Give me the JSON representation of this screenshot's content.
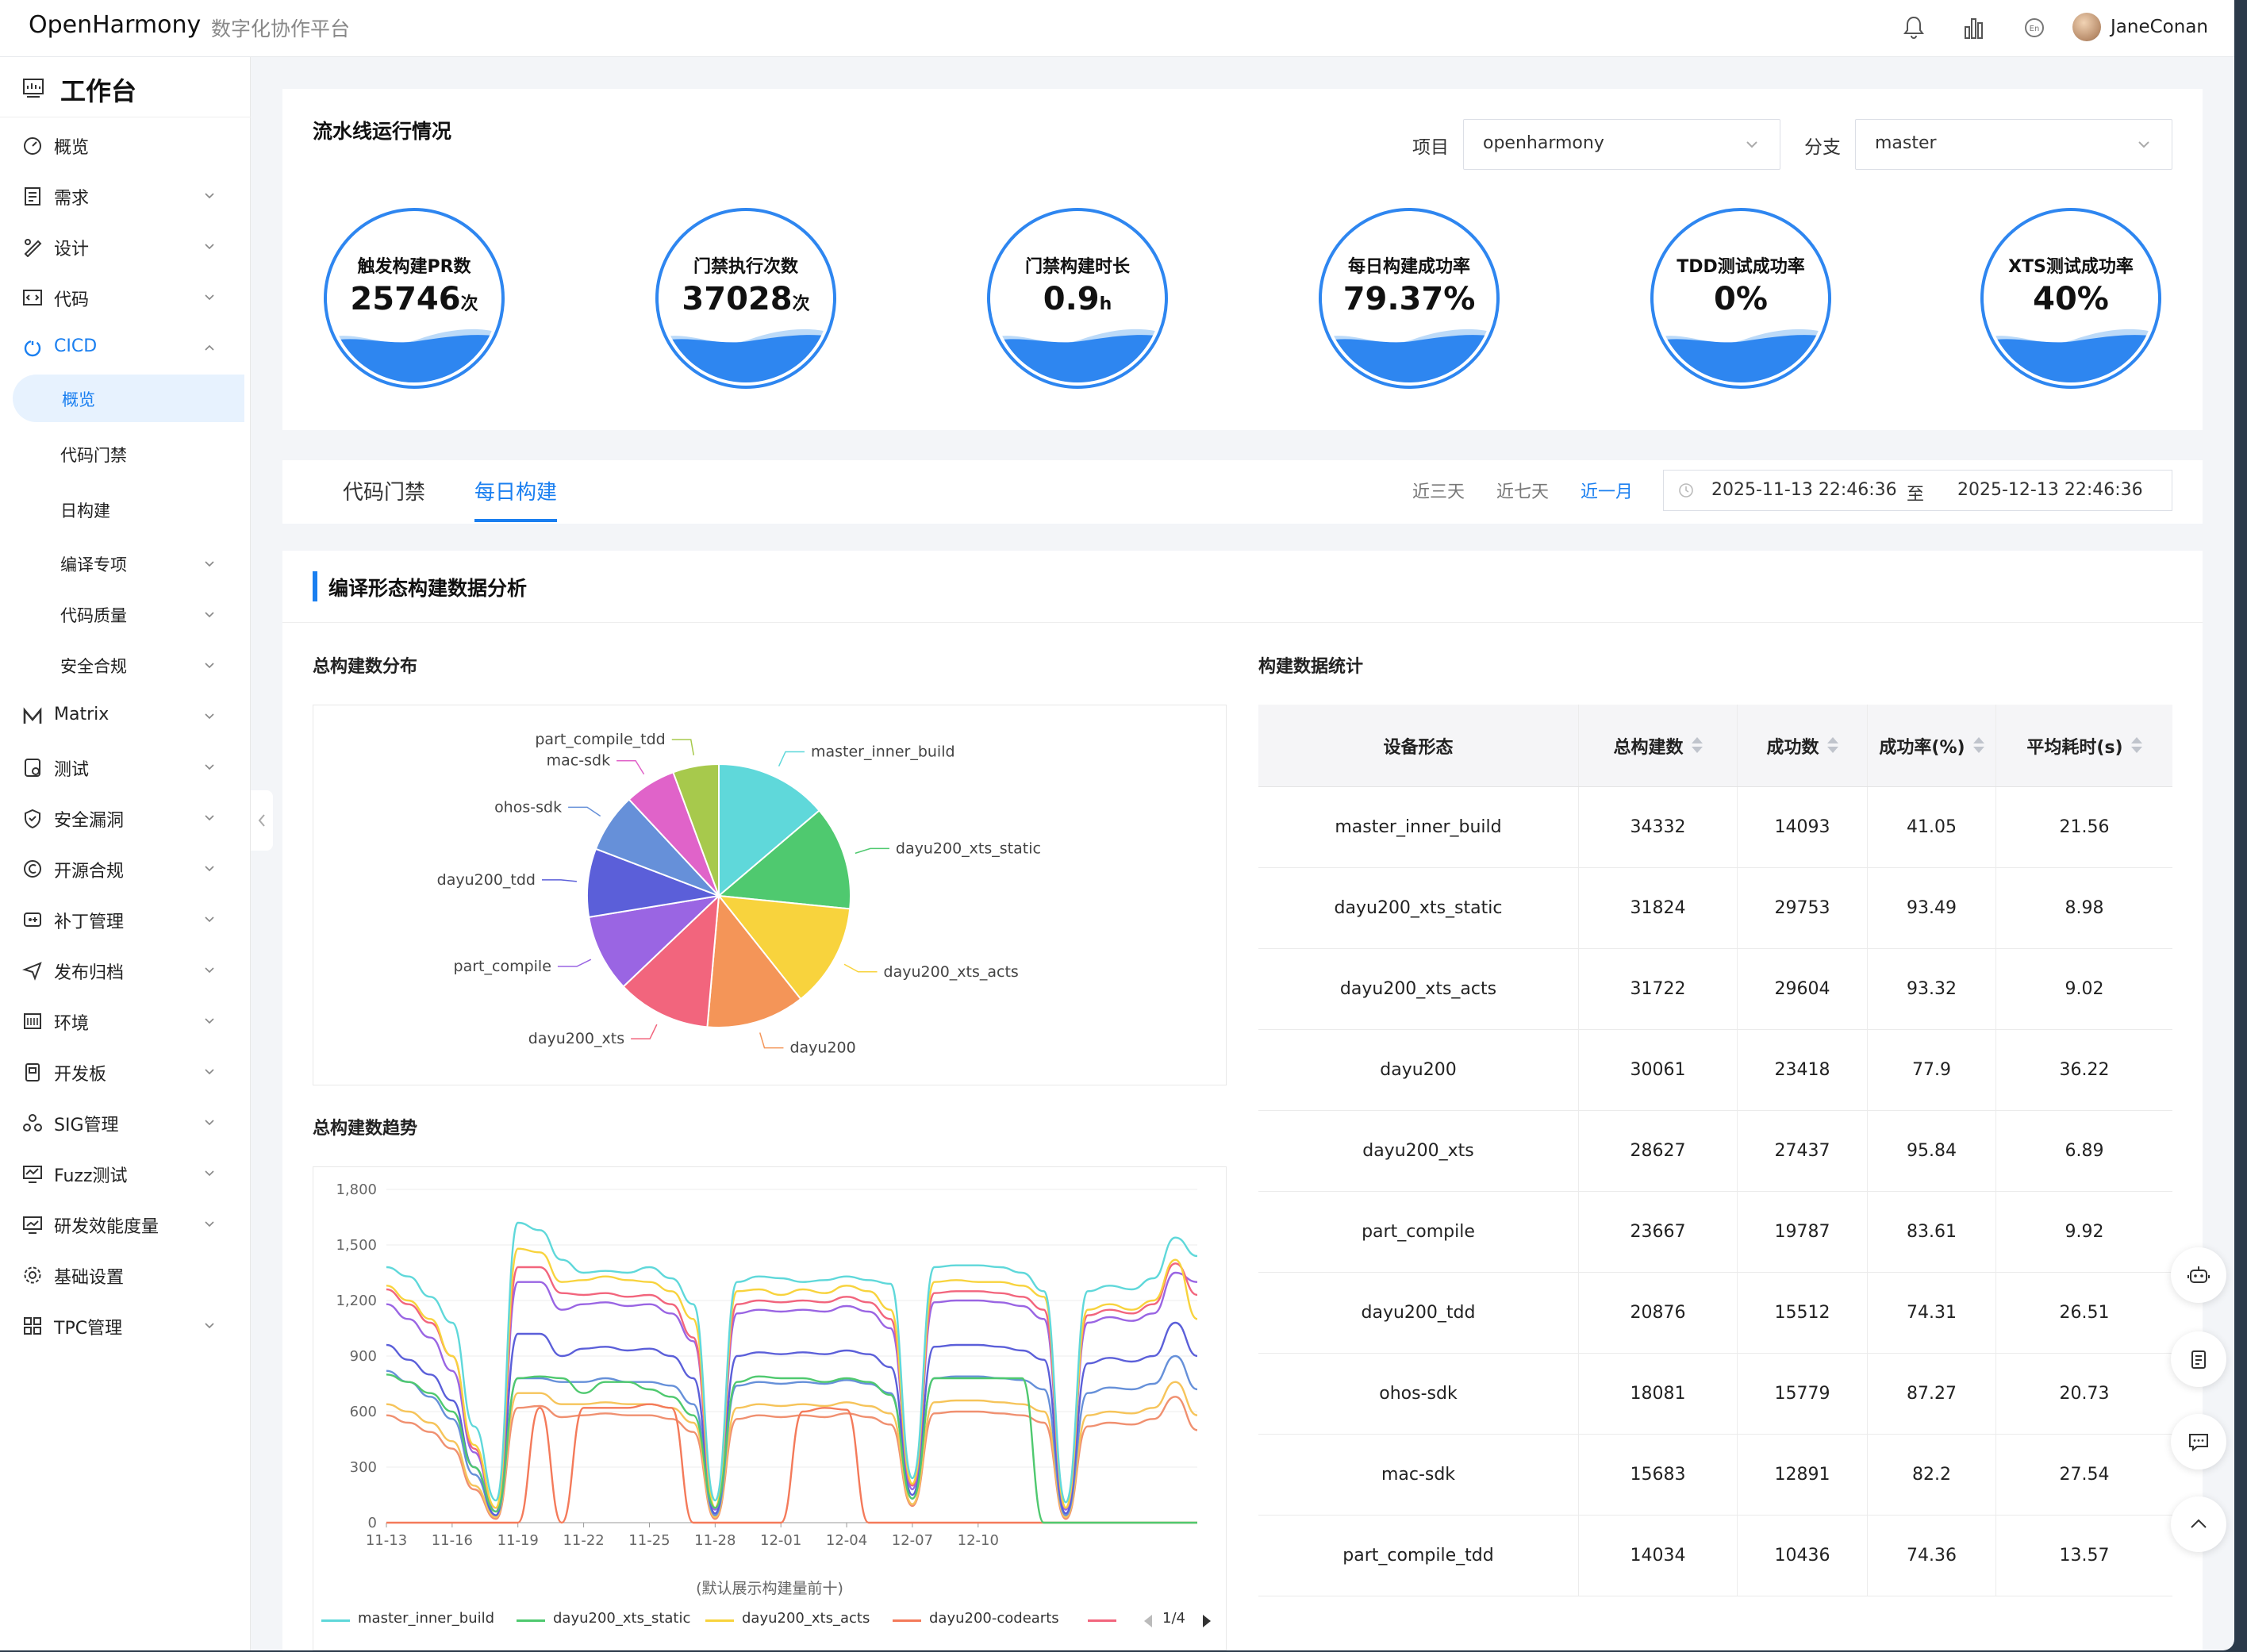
{
  "header": {
    "logo": "OpenHarmony",
    "subtitle": "数字化协作平台",
    "username": "JaneConan",
    "icons": [
      "bell-icon",
      "bar-chart-icon",
      "language-icon"
    ]
  },
  "sidebar": {
    "title": "工作台",
    "items": [
      {
        "label": "概览",
        "icon": "dashboard-icon",
        "chevron": false
      },
      {
        "label": "需求",
        "icon": "document-icon",
        "chevron": true
      },
      {
        "label": "设计",
        "icon": "design-icon",
        "chevron": true
      },
      {
        "label": "代码",
        "icon": "code-icon",
        "chevron": true
      },
      {
        "label": "CICD",
        "icon": "cicd-icon",
        "chevron": true,
        "expanded": true
      },
      {
        "label": "概览",
        "sub": true,
        "active": true
      },
      {
        "label": "代码门禁",
        "sub": true
      },
      {
        "label": "日构建",
        "sub": true
      },
      {
        "label": "编译专项",
        "sub": true,
        "chevron": true
      },
      {
        "label": "代码质量",
        "sub": true,
        "chevron": true
      },
      {
        "label": "安全合规",
        "sub": true,
        "chevron": true
      },
      {
        "label": "Matrix",
        "icon": "matrix-icon",
        "chevron": true
      },
      {
        "label": "测试",
        "icon": "test-icon",
        "chevron": true
      },
      {
        "label": "安全漏洞",
        "icon": "shield-icon",
        "chevron": true
      },
      {
        "label": "开源合规",
        "icon": "copyright-icon",
        "chevron": true
      },
      {
        "label": "补丁管理",
        "icon": "patch-icon",
        "chevron": true
      },
      {
        "label": "发布归档",
        "icon": "send-icon",
        "chevron": true
      },
      {
        "label": "环境",
        "icon": "server-icon",
        "chevron": true
      },
      {
        "label": "开发板",
        "icon": "board-icon",
        "chevron": true
      },
      {
        "label": "SIG管理",
        "icon": "group-icon",
        "chevron": true
      },
      {
        "label": "Fuzz测试",
        "icon": "monitor-icon",
        "chevron": true
      },
      {
        "label": "研发效能度量",
        "icon": "metric-icon",
        "chevron": true
      },
      {
        "label": "基础设置",
        "icon": "gear-icon",
        "chevron": false
      },
      {
        "label": "TPC管理",
        "icon": "grid-icon",
        "chevron": true
      }
    ]
  },
  "pipeline": {
    "title": "流水线运行情况",
    "project_label": "项目",
    "project_value": "openharmony",
    "branch_label": "分支",
    "branch_value": "master",
    "gauges": [
      {
        "title": "触发构建PR数",
        "value": "25746",
        "unit": "次"
      },
      {
        "title": "门禁执行次数",
        "value": "37028",
        "unit": "次"
      },
      {
        "title": "门禁构建时长",
        "value": "0.9",
        "unit": "h"
      },
      {
        "title": "每日构建成功率",
        "value": "79.37%",
        "unit": ""
      },
      {
        "title": "TDD测试成功率",
        "value": "0%",
        "unit": ""
      },
      {
        "title": "XTS测试成功率",
        "value": "40%",
        "unit": ""
      }
    ]
  },
  "tabs": {
    "items": [
      "代码门禁",
      "每日构建"
    ],
    "active": 1
  },
  "ranges": {
    "items": [
      "近三天",
      "近七天",
      "近一月"
    ],
    "active": 2
  },
  "date_range": {
    "start": "2025-11-13 22:46:36",
    "sep": "至",
    "end": "2025-12-13 22:46:36"
  },
  "analysis": {
    "title": "编译形态构建数据分析",
    "pie_title": "总构建数分布",
    "trend_title": "总构建数趋势",
    "trend_note": "(默认展示构建量前十)",
    "table_title": "构建数据统计",
    "legend": [
      "master_inner_build",
      "dayu200_xts_static",
      "dayu200_xts_acts",
      "dayu200-codearts"
    ],
    "legend_page": "1/4"
  },
  "table": {
    "headers": [
      "设备形态",
      "总构建数",
      "成功数",
      "成功率(%)",
      "平均耗时(s)"
    ],
    "rows": [
      [
        "master_inner_build",
        "34332",
        "14093",
        "41.05",
        "21.56"
      ],
      [
        "dayu200_xts_static",
        "31824",
        "29753",
        "93.49",
        "8.98"
      ],
      [
        "dayu200_xts_acts",
        "31722",
        "29604",
        "93.32",
        "9.02"
      ],
      [
        "dayu200",
        "30061",
        "23418",
        "77.9",
        "36.22"
      ],
      [
        "dayu200_xts",
        "28627",
        "27437",
        "95.84",
        "6.89"
      ],
      [
        "part_compile",
        "23667",
        "19787",
        "83.61",
        "9.92"
      ],
      [
        "dayu200_tdd",
        "20876",
        "15512",
        "74.31",
        "26.51"
      ],
      [
        "ohos-sdk",
        "18081",
        "15779",
        "87.27",
        "20.73"
      ],
      [
        "mac-sdk",
        "15683",
        "12891",
        "82.2",
        "27.54"
      ],
      [
        "part_compile_tdd",
        "14034",
        "10436",
        "74.36",
        "13.57"
      ]
    ]
  },
  "chart_data": [
    {
      "type": "pie",
      "title": "总构建数分布",
      "categories": [
        "master_inner_build",
        "dayu200_xts_static",
        "dayu200_xts_acts",
        "dayu200",
        "dayu200_xts",
        "part_compile",
        "dayu200_tdd",
        "ohos-sdk",
        "mac-sdk",
        "part_compile_tdd"
      ],
      "values": [
        34332,
        31824,
        31722,
        30061,
        28627,
        23667,
        20876,
        18081,
        15683,
        14034
      ],
      "colors": [
        "#5fd8da",
        "#4fc96f",
        "#f8d33d",
        "#f49558",
        "#f2657d",
        "#9a65e3",
        "#5b5fd9",
        "#6690d9",
        "#e063c9",
        "#a7c94c"
      ]
    },
    {
      "type": "line",
      "title": "总构建数趋势",
      "ylim": [
        0,
        1800
      ],
      "yticks": [
        "0",
        "300",
        "600",
        "900",
        "1,200",
        "1,500",
        "1,800"
      ],
      "xticks": [
        "11-13",
        "11-16",
        "11-19",
        "11-22",
        "11-25",
        "11-28",
        "12-01",
        "12-04",
        "12-07",
        "12-10"
      ],
      "series": [
        {
          "name": "master_inner_build",
          "color": "#5fd8da",
          "values": [
            1380,
            1330,
            1220,
            1080,
            520,
            120,
            1620,
            1580,
            1420,
            1350,
            1360,
            1350,
            1380,
            1320,
            1180,
            120,
            1300,
            1330,
            1320,
            1300,
            1310,
            1330,
            1310,
            1290,
            240,
            1380,
            1390,
            1390,
            1380,
            1350,
            1250,
            110,
            1250,
            1280,
            1260,
            1320,
            1540,
            1440
          ]
        },
        {
          "name": "dayu200_xts_static",
          "color": "#4fc96f",
          "values": [
            800,
            760,
            700,
            600,
            300,
            60,
            780,
            790,
            780,
            700,
            760,
            760,
            720,
            680,
            580,
            80,
            760,
            790,
            780,
            780,
            760,
            780,
            760,
            690,
            130,
            780,
            780,
            780,
            780,
            780,
            0,
            0,
            0,
            0,
            0,
            0,
            0,
            0
          ]
        },
        {
          "name": "dayu200_xts_acts",
          "color": "#f8d33d",
          "values": [
            1280,
            1200,
            1100,
            900,
            420,
            80,
            1480,
            1460,
            1300,
            1310,
            1330,
            1310,
            1300,
            1250,
            1100,
            80,
            1250,
            1260,
            1230,
            1260,
            1240,
            1280,
            1250,
            1150,
            210,
            1300,
            1310,
            1300,
            1300,
            1280,
            1220,
            80,
            1150,
            1180,
            1150,
            1200,
            1420,
            1100
          ]
        },
        {
          "name": "dayu200-codearts",
          "color": "#f47a5a",
          "values": [
            0,
            0,
            0,
            0,
            0,
            0,
            0,
            620,
            0,
            620,
            620,
            620,
            640,
            620,
            0,
            0,
            0,
            0,
            0,
            600,
            620,
            610,
            0,
            0,
            0,
            0,
            0,
            0,
            0,
            0,
            0,
            0,
            0,
            0,
            0,
            0,
            0,
            0
          ]
        },
        {
          "name": "",
          "color": "#f2657d",
          "values": [
            1260,
            1180,
            1080,
            900,
            400,
            80,
            1380,
            1380,
            1240,
            1230,
            1240,
            1220,
            1230,
            1180,
            1000,
            80,
            1180,
            1200,
            1190,
            1200,
            1190,
            1220,
            1190,
            1100,
            200,
            1240,
            1250,
            1250,
            1240,
            1220,
            1150,
            80,
            1120,
            1150,
            1130,
            1180,
            1400,
            1230
          ]
        },
        {
          "name": "",
          "color": "#9a65e3",
          "values": [
            1180,
            1100,
            1000,
            820,
            380,
            60,
            1300,
            1300,
            1150,
            1180,
            1190,
            1170,
            1180,
            1130,
            980,
            70,
            1130,
            1150,
            1140,
            1150,
            1140,
            1170,
            1140,
            1050,
            180,
            1190,
            1200,
            1200,
            1190,
            1170,
            1100,
            70,
            1080,
            1110,
            1090,
            1130,
            1350,
            1300
          ]
        },
        {
          "name": "",
          "color": "#5b5fd9",
          "values": [
            960,
            880,
            800,
            660,
            300,
            40,
            1020,
            1020,
            900,
            940,
            950,
            930,
            940,
            900,
            780,
            50,
            900,
            920,
            910,
            920,
            910,
            930,
            910,
            840,
            150,
            950,
            960,
            960,
            950,
            930,
            880,
            50,
            860,
            890,
            870,
            900,
            1080,
            900
          ]
        },
        {
          "name": "",
          "color": "#6690d9",
          "values": [
            820,
            760,
            680,
            560,
            260,
            40,
            780,
            780,
            760,
            760,
            780,
            760,
            760,
            740,
            640,
            40,
            740,
            760,
            750,
            760,
            750,
            770,
            750,
            700,
            130,
            780,
            790,
            790,
            780,
            770,
            720,
            40,
            700,
            730,
            720,
            750,
            900,
            720
          ]
        },
        {
          "name": "",
          "color": "#f6c45a",
          "values": [
            640,
            600,
            540,
            440,
            200,
            30,
            700,
            700,
            640,
            640,
            650,
            640,
            640,
            620,
            540,
            30,
            620,
            640,
            630,
            640,
            630,
            650,
            630,
            590,
            100,
            650,
            660,
            660,
            650,
            640,
            600,
            30,
            580,
            600,
            590,
            620,
            760,
            580
          ]
        },
        {
          "name": "",
          "color": "#f09070",
          "values": [
            580,
            540,
            490,
            400,
            180,
            20,
            620,
            630,
            570,
            580,
            590,
            580,
            580,
            560,
            490,
            20,
            560,
            580,
            570,
            580,
            570,
            590,
            570,
            530,
            90,
            590,
            600,
            600,
            590,
            580,
            540,
            20,
            520,
            540,
            530,
            560,
            680,
            500
          ]
        }
      ]
    }
  ]
}
